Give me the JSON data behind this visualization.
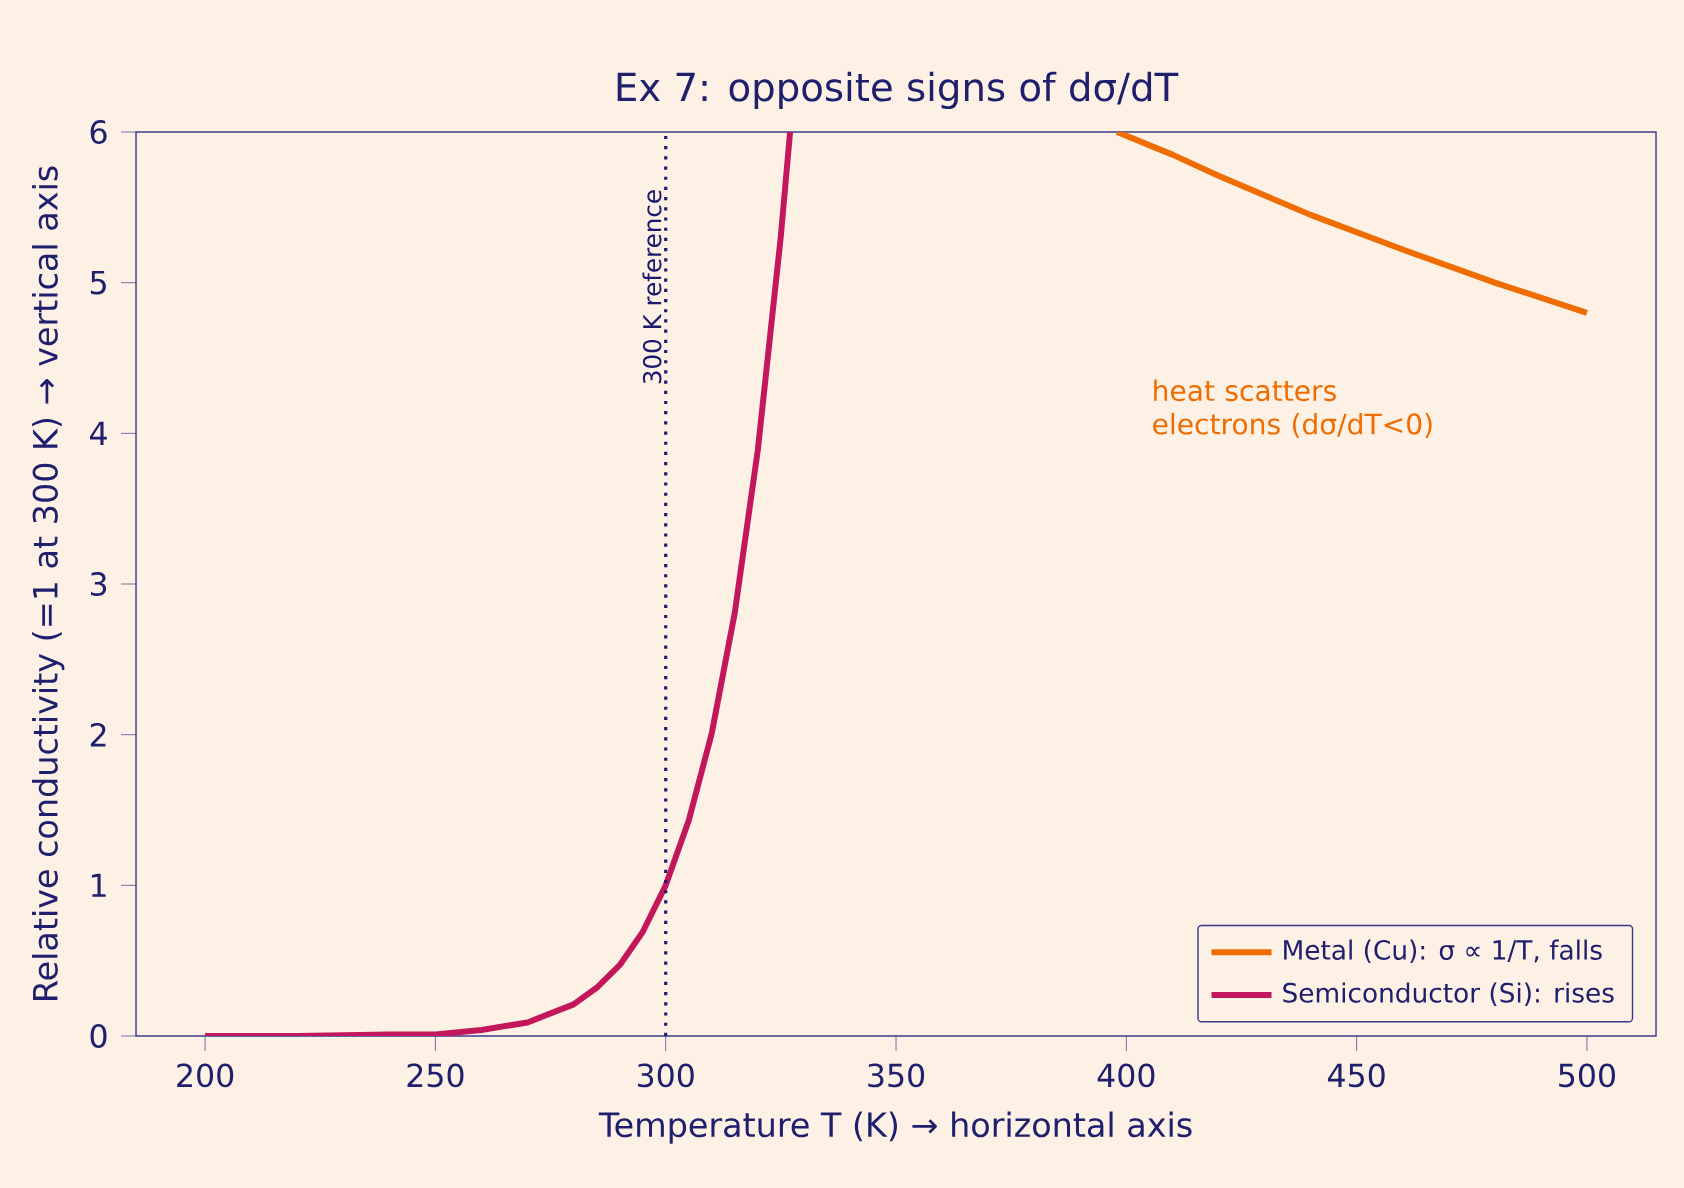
{
  "chart_data": {
    "type": "line",
    "title": "Ex 7: opposite signs of dσ/dT",
    "xlabel": "Temperature T (K)  →  horizontal axis",
    "ylabel": "Relative conductivity (=1 at 300 K)  →  vertical axis",
    "series": [
      {
        "name": "Metal (Cu): σ ∝ 1/T, falls",
        "color": "#ef6c00",
        "x": [
          398,
          410,
          420,
          440,
          460,
          480,
          500
        ],
        "values": [
          6.0,
          5.85,
          5.71,
          5.45,
          5.22,
          5.0,
          4.8
        ]
      },
      {
        "name": "Semiconductor (Si): rises",
        "color": "#c2185b",
        "x": [
          200,
          220,
          240,
          250,
          260,
          270,
          280,
          285,
          290,
          295,
          300,
          305,
          310,
          315,
          320,
          325,
          327
        ],
        "values": [
          0.0,
          0.0,
          0.01,
          0.01,
          0.04,
          0.09,
          0.21,
          0.32,
          0.47,
          0.69,
          1.0,
          1.43,
          2.01,
          2.81,
          3.89,
          5.31,
          6.0
        ]
      }
    ],
    "xlim": [
      185,
      515
    ],
    "ylim": [
      0,
      6
    ],
    "xticks": [
      200,
      250,
      300,
      350,
      400,
      450,
      500
    ],
    "yticks": [
      0,
      1,
      2,
      3,
      4,
      5,
      6
    ],
    "ref_lines": [
      {
        "axis": "x",
        "value": 300,
        "label": "300 K reference",
        "color": "#1a1a6e",
        "line_style": "dotted"
      }
    ],
    "annotations": [
      "heat scatters electrons (dσ/dT<0)"
    ],
    "legend": "bottom right",
    "marker": "none",
    "line_style": "solid"
  }
}
